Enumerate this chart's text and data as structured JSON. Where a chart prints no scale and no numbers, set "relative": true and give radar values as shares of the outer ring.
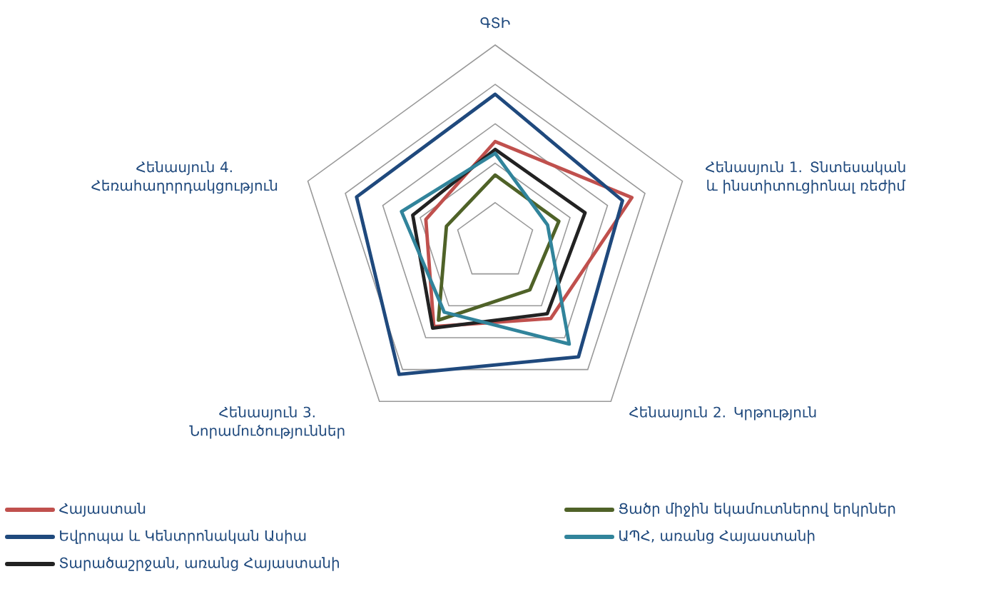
{
  "chart_data": {
    "type": "radar",
    "relative": true,
    "grid": true,
    "legend": "bottom",
    "categories": [
      "ԳՏԻ",
      "Հենասյուն 1. Տնտեսական և ինստիտուցիոնալ ռեժիմ",
      "Հենասյուն 2. Կրթություն",
      "Հենասյուն 3. Նորամուծություններ",
      "Հենասյուն 4. Հեռահաղորդակցություն"
    ],
    "series": [
      {
        "name": "Հայաստան",
        "color": "#c0504d",
        "values": [
          0.51,
          0.73,
          0.48,
          0.53,
          0.37
        ]
      },
      {
        "name": "Եվրոպա և Կենտրոնական Ասիա",
        "color": "#1f497d",
        "values": [
          0.75,
          0.68,
          0.72,
          0.83,
          0.74
        ]
      },
      {
        "name": "Տարածաշրջան, առանց Հայաստանի",
        "color": "#222222",
        "values": [
          0.47,
          0.48,
          0.45,
          0.54,
          0.44
        ]
      },
      {
        "name": "Ցածր միջին եկամուտներով երկրներ",
        "color": "#4f6228",
        "values": [
          0.34,
          0.34,
          0.3,
          0.49,
          0.26
        ]
      },
      {
        "name": "ԱՊՀ, առանց Հայաստանի",
        "color": "#31849b",
        "values": [
          0.45,
          0.28,
          0.64,
          0.44,
          0.5
        ]
      }
    ]
  }
}
